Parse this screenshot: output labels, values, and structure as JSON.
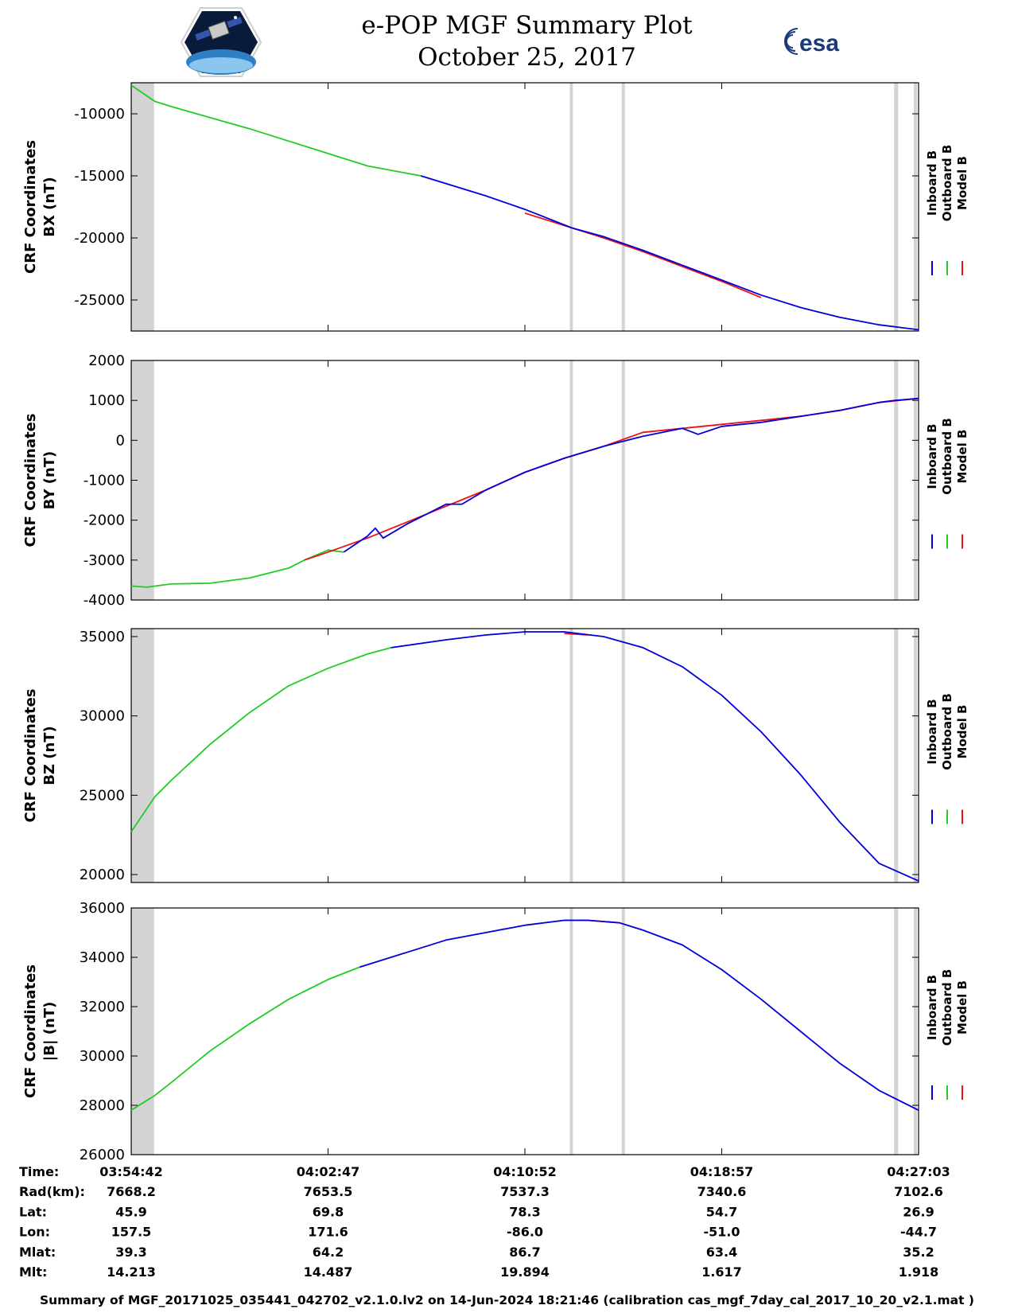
{
  "header": {
    "title_line1": "e-POP MGF Summary Plot",
    "title_line2": "October 25, 2017",
    "left_logo": "cassiope-mission-logo",
    "right_logo": "esa-logo",
    "right_logo_text": "esa"
  },
  "colors": {
    "inboard": "#0000dd",
    "outboard": "#22cc22",
    "model": "#ee1111",
    "shade": "#d3d3d3"
  },
  "legend": [
    "Inboard B",
    "Outboard B",
    "Model B"
  ],
  "chart_data": [
    {
      "type": "line",
      "ylabel_line1": "CRF Coordinates",
      "ylabel_line2": "BX (nT)",
      "ylim": [
        -27500,
        -7500
      ],
      "yticks": [
        -25000,
        -20000,
        -15000,
        -10000
      ],
      "ytick_labels": [
        "-25000",
        "-20000",
        "-15000",
        "-10000"
      ],
      "series": [
        {
          "name": "Outboard B",
          "color": "outboard",
          "x": [
            0,
            0.03,
            0.05,
            0.1,
            0.15,
            0.2,
            0.25,
            0.3,
            0.368
          ],
          "y": [
            -7700,
            -9000,
            -9400,
            -10300,
            -11200,
            -12200,
            -13200,
            -14200,
            -15000
          ]
        },
        {
          "name": "Model B",
          "color": "model",
          "x": [
            0.5,
            0.56,
            0.6,
            0.65,
            0.7,
            0.75,
            0.8
          ],
          "y": [
            -18000,
            -19200,
            -20000,
            -21100,
            -22300,
            -23500,
            -24800
          ]
        },
        {
          "name": "Inboard B",
          "color": "inboard",
          "x": [
            0.368,
            0.45,
            0.5,
            0.56,
            0.6,
            0.65,
            0.7,
            0.75,
            0.8,
            0.85,
            0.9,
            0.95,
            1.0
          ],
          "y": [
            -15000,
            -16600,
            -17700,
            -19200,
            -19900,
            -21000,
            -22200,
            -23400,
            -24600,
            -25600,
            -26400,
            -27000,
            -27400
          ]
        }
      ]
    },
    {
      "type": "line",
      "ylabel_line1": "CRF Coordinates",
      "ylabel_line2": "BY (nT)",
      "ylim": [
        -4000,
        2000
      ],
      "yticks": [
        -4000,
        -3000,
        -2000,
        -1000,
        0,
        1000,
        2000
      ],
      "ytick_labels": [
        "-4000",
        "-3000",
        "-2000",
        "-1000",
        "0",
        "1000",
        "2000"
      ],
      "series": [
        {
          "name": "Outboard B",
          "color": "outboard",
          "x": [
            0,
            0.02,
            0.05,
            0.1,
            0.15,
            0.2,
            0.22,
            0.25,
            0.27
          ],
          "y": [
            -3650,
            -3680,
            -3600,
            -3580,
            -3450,
            -3200,
            -3000,
            -2750,
            -2800
          ]
        },
        {
          "name": "Model B",
          "color": "model",
          "x": [
            0.22,
            0.25,
            0.3,
            0.35,
            0.4,
            0.45,
            0.5,
            0.55,
            0.6,
            0.65,
            0.7,
            0.75,
            0.8,
            0.85,
            0.9,
            0.95,
            1.0
          ],
          "y": [
            -3000,
            -2800,
            -2450,
            -2050,
            -1650,
            -1250,
            -800,
            -450,
            -150,
            200,
            300,
            400,
            500,
            600,
            750,
            950,
            1050
          ]
        },
        {
          "name": "Inboard B",
          "color": "inboard",
          "x": [
            0.27,
            0.3,
            0.31,
            0.32,
            0.35,
            0.4,
            0.42,
            0.45,
            0.5,
            0.55,
            0.6,
            0.62,
            0.65,
            0.7,
            0.72,
            0.75,
            0.8,
            0.85,
            0.9,
            0.95,
            0.97,
            1.0
          ],
          "y": [
            -2800,
            -2400,
            -2200,
            -2450,
            -2100,
            -1600,
            -1600,
            -1250,
            -800,
            -450,
            -150,
            -50,
            100,
            300,
            150,
            350,
            450,
            600,
            750,
            950,
            1000,
            1050
          ]
        }
      ]
    },
    {
      "type": "line",
      "ylabel_line1": "CRF Coordinates",
      "ylabel_line2": "BZ (nT)",
      "ylim": [
        19500,
        35500
      ],
      "yticks": [
        20000,
        25000,
        30000,
        35000
      ],
      "ytick_labels": [
        "20000",
        "25000",
        "30000",
        "35000"
      ],
      "series": [
        {
          "name": "Outboard B",
          "color": "outboard",
          "x": [
            0,
            0.03,
            0.05,
            0.1,
            0.15,
            0.2,
            0.25,
            0.3,
            0.33
          ],
          "y": [
            22700,
            24900,
            25900,
            28200,
            30200,
            31900,
            33000,
            33900,
            34300
          ]
        },
        {
          "name": "Model B",
          "color": "model",
          "x": [
            0.55,
            0.58
          ],
          "y": [
            35200,
            35100
          ]
        },
        {
          "name": "Inboard B",
          "color": "inboard",
          "x": [
            0.33,
            0.4,
            0.45,
            0.5,
            0.55,
            0.6,
            0.65,
            0.7,
            0.75,
            0.8,
            0.85,
            0.9,
            0.95,
            1.0
          ],
          "y": [
            34300,
            34800,
            35100,
            35300,
            35300,
            35000,
            34300,
            33100,
            31300,
            29000,
            26300,
            23300,
            20700,
            19600
          ]
        }
      ]
    },
    {
      "type": "line",
      "ylabel_line1": "CRF Coordinates",
      "ylabel_line2": "|B| (nT)",
      "ylim": [
        26000,
        36000
      ],
      "yticks": [
        26000,
        28000,
        30000,
        32000,
        34000,
        36000
      ],
      "ytick_labels": [
        "26000",
        "28000",
        "30000",
        "32000",
        "34000",
        "36000"
      ],
      "series": [
        {
          "name": "Outboard B",
          "color": "outboard",
          "x": [
            0,
            0.03,
            0.05,
            0.1,
            0.15,
            0.2,
            0.25,
            0.29
          ],
          "y": [
            27800,
            28400,
            28900,
            30200,
            31300,
            32300,
            33100,
            33600
          ]
        },
        {
          "name": "Model B",
          "color": "model",
          "x": [
            0.55,
            0.58,
            0.62
          ],
          "y": [
            35500,
            35500,
            35400
          ]
        },
        {
          "name": "Inboard B",
          "color": "inboard",
          "x": [
            0.29,
            0.35,
            0.4,
            0.45,
            0.5,
            0.55,
            0.58,
            0.62,
            0.65,
            0.7,
            0.75,
            0.8,
            0.85,
            0.9,
            0.95,
            1.0
          ],
          "y": [
            33600,
            34200,
            34700,
            35000,
            35300,
            35500,
            35500,
            35400,
            35100,
            34500,
            33500,
            32300,
            31000,
            29700,
            28600,
            27800
          ]
        }
      ]
    }
  ],
  "shaded_intervals": [
    [
      0.0,
      0.014
    ],
    [
      0.014,
      0.029
    ],
    [
      0.557,
      0.561
    ],
    [
      0.623,
      0.627
    ],
    [
      0.969,
      0.974
    ],
    [
      0.994,
      0.998
    ]
  ],
  "info_table": {
    "labels": [
      "Time:",
      "Rad(km):",
      "Lat:",
      "Lon:",
      "Mlat:",
      "Mlt:"
    ],
    "columns": [
      [
        "03:54:42",
        "7668.2",
        "45.9",
        "157.5",
        "39.3",
        "14.213"
      ],
      [
        "04:02:47",
        "7653.5",
        "69.8",
        "171.6",
        "64.2",
        "14.487"
      ],
      [
        "04:10:52",
        "7537.3",
        "78.3",
        "-86.0",
        "86.7",
        "19.894"
      ],
      [
        "04:18:57",
        "7340.6",
        "54.7",
        "-51.0",
        "63.4",
        "1.617"
      ],
      [
        "04:27:03",
        "7102.6",
        "26.9",
        "-44.7",
        "35.2",
        "1.918"
      ]
    ]
  },
  "footer": "Summary of MGF_20171025_035441_042702_v2.1.0.lv2 on 14-Jun-2024 18:21:46 (calibration cas_mgf_7day_cal_2017_10_20_v2.1.mat )"
}
